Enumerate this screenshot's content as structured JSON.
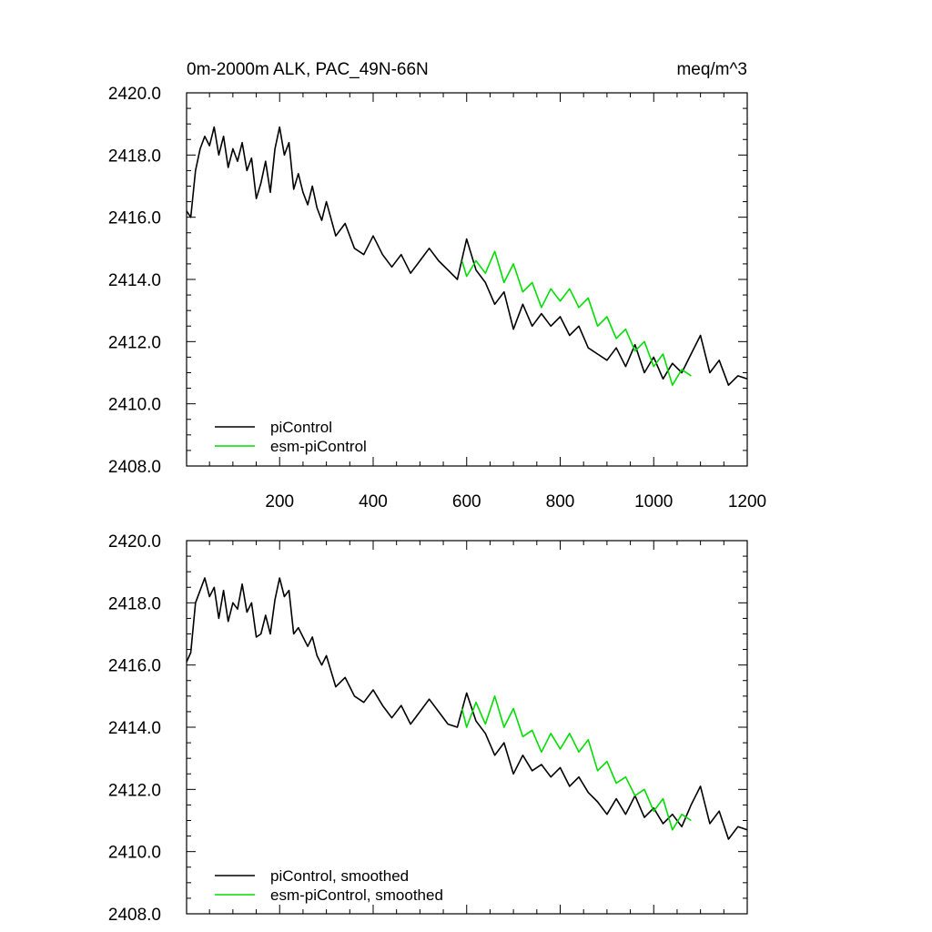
{
  "chart_data": [
    {
      "type": "line",
      "title": "0m-2000m ALK, PAC_49N-66N",
      "units": "meq/m^3",
      "xlabel": "",
      "ylabel": "",
      "xlim": [
        1,
        1200
      ],
      "ylim": [
        2408.0,
        2420.0
      ],
      "xticks": [
        200,
        400,
        600,
        800,
        1000,
        1200
      ],
      "yticks": [
        "2408.0",
        "2410.0",
        "2412.0",
        "2414.0",
        "2416.0",
        "2418.0",
        "2420.0"
      ],
      "legend_position": "bottom-left",
      "series": [
        {
          "name": "piControl",
          "color": "#000000",
          "x": [
            1,
            10,
            20,
            30,
            40,
            50,
            60,
            70,
            80,
            90,
            100,
            110,
            120,
            130,
            140,
            150,
            160,
            170,
            180,
            190,
            200,
            210,
            220,
            230,
            240,
            250,
            260,
            270,
            280,
            290,
            300,
            320,
            340,
            360,
            380,
            400,
            420,
            440,
            460,
            480,
            500,
            520,
            540,
            560,
            580,
            600,
            620,
            640,
            660,
            680,
            700,
            720,
            740,
            760,
            780,
            800,
            820,
            840,
            860,
            880,
            900,
            920,
            940,
            960,
            980,
            1000,
            1020,
            1040,
            1060,
            1080,
            1100,
            1120,
            1140,
            1160,
            1180,
            1200
          ],
          "values": [
            2416.2,
            2416.0,
            2417.5,
            2418.2,
            2418.6,
            2418.3,
            2418.9,
            2418.0,
            2418.6,
            2417.6,
            2418.2,
            2417.8,
            2418.4,
            2417.5,
            2417.9,
            2416.6,
            2417.1,
            2417.8,
            2416.8,
            2418.2,
            2418.9,
            2418.0,
            2418.4,
            2416.9,
            2417.4,
            2416.8,
            2416.4,
            2417.0,
            2416.3,
            2415.9,
            2416.5,
            2415.4,
            2415.8,
            2415.0,
            2414.8,
            2415.4,
            2414.8,
            2414.4,
            2414.8,
            2414.2,
            2414.6,
            2415.0,
            2414.6,
            2414.3,
            2414.0,
            2415.3,
            2414.3,
            2413.9,
            2413.2,
            2413.6,
            2412.4,
            2413.2,
            2412.5,
            2412.9,
            2412.5,
            2412.8,
            2412.2,
            2412.5,
            2411.8,
            2411.6,
            2411.4,
            2411.8,
            2411.2,
            2411.9,
            2411.0,
            2411.5,
            2410.8,
            2411.3,
            2411.0,
            2411.6,
            2412.2,
            2411.0,
            2411.4,
            2410.6,
            2410.9,
            2410.8
          ]
        },
        {
          "name": "esm-piControl",
          "color": "#00dd00",
          "x": [
            590,
            600,
            620,
            640,
            660,
            680,
            700,
            720,
            740,
            760,
            780,
            800,
            820,
            840,
            860,
            880,
            900,
            920,
            940,
            960,
            980,
            1000,
            1020,
            1040,
            1060,
            1080
          ],
          "values": [
            2414.6,
            2414.1,
            2414.6,
            2414.2,
            2414.9,
            2413.9,
            2414.5,
            2413.6,
            2413.9,
            2413.1,
            2413.7,
            2413.3,
            2413.7,
            2413.1,
            2413.4,
            2412.5,
            2412.8,
            2412.1,
            2412.4,
            2411.7,
            2412.0,
            2411.2,
            2411.6,
            2410.6,
            2411.1,
            2410.9
          ]
        }
      ]
    },
    {
      "type": "line",
      "title": "",
      "xlim": [
        1,
        1200
      ],
      "ylim": [
        2408.0,
        2420.0
      ],
      "yticks": [
        "2408.0",
        "2410.0",
        "2412.0",
        "2414.0",
        "2416.0",
        "2418.0",
        "2420.0"
      ],
      "legend_position": "bottom-left",
      "series": [
        {
          "name": "piControl, smoothed",
          "color": "#000000",
          "x": [
            1,
            10,
            20,
            30,
            40,
            50,
            60,
            70,
            80,
            90,
            100,
            110,
            120,
            130,
            140,
            150,
            160,
            170,
            180,
            190,
            200,
            210,
            220,
            230,
            240,
            250,
            260,
            270,
            280,
            290,
            300,
            320,
            340,
            360,
            380,
            400,
            420,
            440,
            460,
            480,
            500,
            520,
            540,
            560,
            580,
            600,
            620,
            640,
            660,
            680,
            700,
            720,
            740,
            760,
            780,
            800,
            820,
            840,
            860,
            880,
            900,
            920,
            940,
            960,
            980,
            1000,
            1020,
            1040,
            1060,
            1080,
            1100,
            1120,
            1140,
            1160,
            1180,
            1200
          ],
          "values": [
            2416.1,
            2416.4,
            2418.0,
            2418.4,
            2418.8,
            2418.2,
            2418.5,
            2417.5,
            2418.4,
            2417.4,
            2418.0,
            2417.8,
            2418.6,
            2417.7,
            2418.0,
            2416.9,
            2417.0,
            2417.6,
            2417.0,
            2418.1,
            2418.8,
            2418.2,
            2418.4,
            2417.0,
            2417.2,
            2416.9,
            2416.6,
            2416.9,
            2416.3,
            2416.0,
            2416.3,
            2415.3,
            2415.6,
            2415.0,
            2414.8,
            2415.2,
            2414.7,
            2414.3,
            2414.7,
            2414.1,
            2414.5,
            2414.9,
            2414.5,
            2414.1,
            2414.0,
            2415.1,
            2414.2,
            2413.8,
            2413.1,
            2413.5,
            2412.5,
            2413.1,
            2412.6,
            2412.8,
            2412.4,
            2412.7,
            2412.1,
            2412.4,
            2411.9,
            2411.6,
            2411.2,
            2411.7,
            2411.2,
            2411.8,
            2411.1,
            2411.4,
            2410.9,
            2411.2,
            2410.8,
            2411.5,
            2412.1,
            2410.9,
            2411.3,
            2410.4,
            2410.8,
            2410.7
          ]
        },
        {
          "name": "esm-piControl, smoothed",
          "color": "#00dd00",
          "x": [
            590,
            600,
            620,
            640,
            660,
            680,
            700,
            720,
            740,
            760,
            780,
            800,
            820,
            840,
            860,
            880,
            900,
            920,
            940,
            960,
            980,
            1000,
            1020,
            1040,
            1060,
            1080
          ],
          "values": [
            2414.6,
            2414.0,
            2414.8,
            2414.1,
            2415.0,
            2414.0,
            2414.6,
            2413.7,
            2413.9,
            2413.2,
            2413.8,
            2413.3,
            2413.8,
            2413.2,
            2413.6,
            2412.6,
            2412.9,
            2412.2,
            2412.4,
            2411.8,
            2412.0,
            2411.3,
            2411.7,
            2410.7,
            2411.2,
            2411.0
          ]
        }
      ]
    }
  ]
}
